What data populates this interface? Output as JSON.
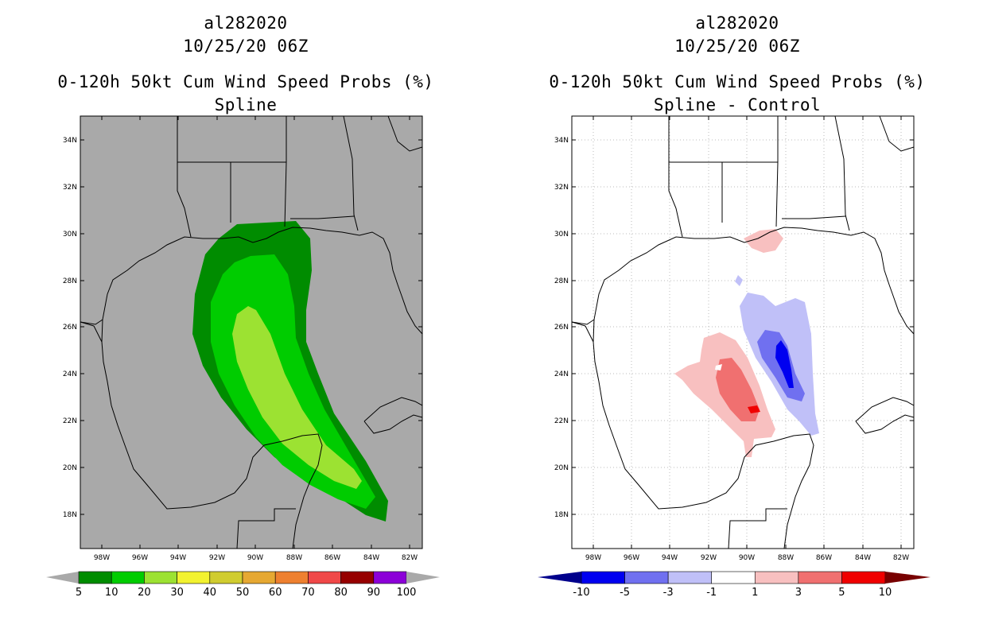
{
  "left_panel": {
    "storm_id": "al282020",
    "datetime": "10/25/20 06Z",
    "product": "0-120h 50kt Cum Wind Speed Probs (%)",
    "subtitle": "Spline",
    "background": "#a9a9a9",
    "lat_labels": [
      "34N",
      "32N",
      "30N",
      "28N",
      "26N",
      "24N",
      "22N",
      "20N",
      "18N"
    ],
    "lon_labels": [
      "98W",
      "96W",
      "94W",
      "92W",
      "90W",
      "88W",
      "86W",
      "84W",
      "82W"
    ],
    "colorbar": {
      "labels": [
        "5",
        "10",
        "20",
        "30",
        "40",
        "50",
        "60",
        "70",
        "80",
        "90",
        "100"
      ],
      "colors": [
        "#008c00",
        "#00cc00",
        "#9ce232",
        "#f2f230",
        "#d0cc30",
        "#e6a832",
        "#ee8030",
        "#f04848",
        "#960000",
        "#8c00d8"
      ],
      "under_color": "#a9a9a9",
      "over_color": "#a9a9a9"
    },
    "contours": {
      "p5": "#008c00",
      "p10": "#00cc00",
      "p20": "#9ce232"
    }
  },
  "right_panel": {
    "storm_id": "al282020",
    "datetime": "10/25/20 06Z",
    "product": "0-120h 50kt Cum Wind Speed Probs (%)",
    "subtitle": "Spline - Control",
    "background": "#ffffff",
    "lat_labels": [
      "34N",
      "32N",
      "30N",
      "28N",
      "26N",
      "24N",
      "22N",
      "20N",
      "18N"
    ],
    "lon_labels": [
      "98W",
      "96W",
      "94W",
      "92W",
      "90W",
      "88W",
      "86W",
      "84W",
      "82W"
    ],
    "colorbar": {
      "labels": [
        "-10",
        "-5",
        "-3",
        "-1",
        "1",
        "3",
        "5",
        "10"
      ],
      "colors": [
        "#0000f0",
        "#7070f0",
        "#c0c0f8",
        "#ffffff",
        "#f8c0c0",
        "#f07070",
        "#f00000"
      ],
      "under_color": "#00008c",
      "over_color": "#780000"
    },
    "contours": {
      "neg1": "#c0c0f8",
      "neg3": "#7070f0",
      "neg5": "#0000f0",
      "pos1": "#f8c0c0",
      "pos3": "#f07070",
      "pos5": "#f00000"
    }
  }
}
